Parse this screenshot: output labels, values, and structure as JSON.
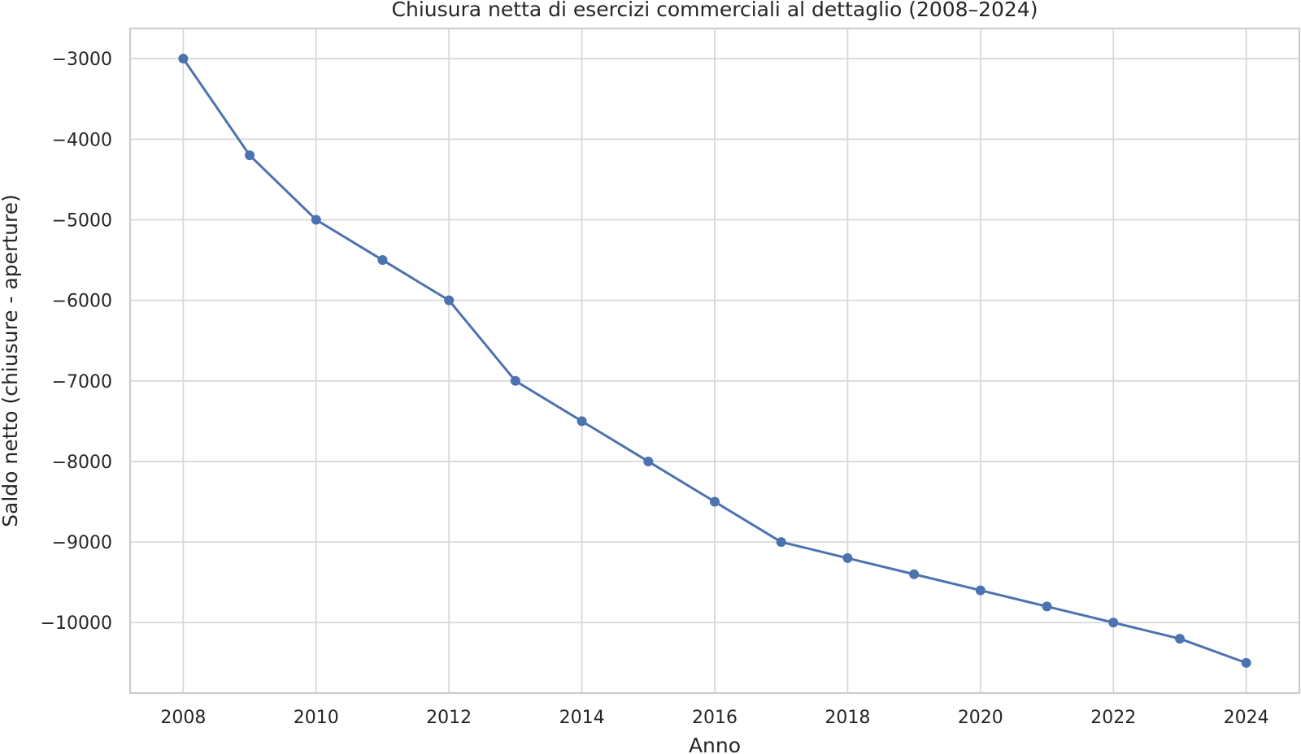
{
  "chart_data": {
    "type": "line",
    "title": "Chiusura netta di esercizi commerciali al dettaglio (2008–2024)",
    "xlabel": "Anno",
    "ylabel": "Saldo netto (chiusure - aperture)",
    "x": [
      2008,
      2009,
      2010,
      2011,
      2012,
      2013,
      2014,
      2015,
      2016,
      2017,
      2018,
      2019,
      2020,
      2021,
      2022,
      2023,
      2024
    ],
    "series": [
      {
        "values": [
          -3000,
          -4200,
          -5000,
          -5500,
          -6000,
          -7000,
          -7500,
          -8000,
          -8500,
          -9000,
          -9200,
          -9400,
          -9600,
          -9800,
          -10000,
          -10200,
          -10500
        ]
      }
    ],
    "xlim": [
      2007.2,
      2024.8
    ],
    "ylim": [
      -10875,
      -2625
    ],
    "x_ticks": [
      2008,
      2010,
      2012,
      2014,
      2016,
      2018,
      2020,
      2022,
      2024
    ],
    "y_ticks": [
      -3000,
      -4000,
      -5000,
      -6000,
      -7000,
      -8000,
      -9000,
      -10000
    ],
    "y_tick_labels": [
      "−3000",
      "−4000",
      "−5000",
      "−6000",
      "−7000",
      "−8000",
      "−9000",
      "−10000"
    ],
    "grid": true,
    "markers": true,
    "color": "#4c72b0"
  }
}
